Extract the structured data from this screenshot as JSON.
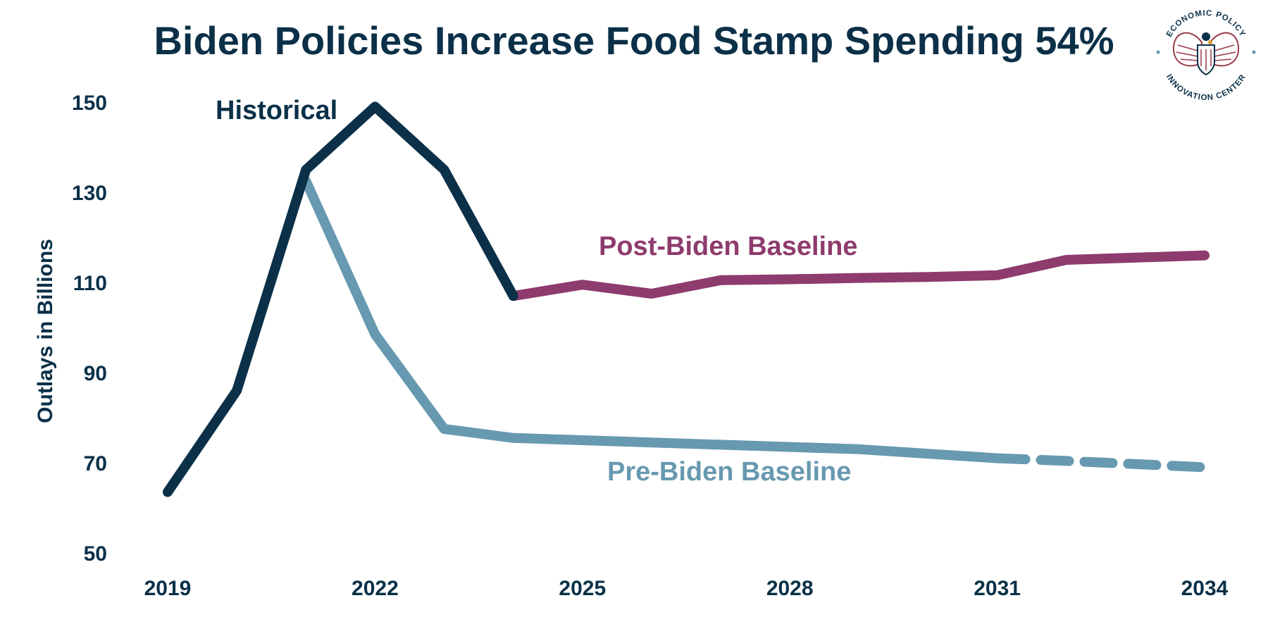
{
  "colors": {
    "navy": "#0b3048",
    "historical": "#0b3048",
    "post_biden": "#8e3b6e",
    "pre_biden": "#6799b0",
    "logo_red": "#9b3a4a"
  },
  "logo": {
    "top_text": "ECONOMIC POLICY",
    "bottom_text": "INNOVATION CENTER",
    "icon": "eagle-seal-icon"
  },
  "chart_data": {
    "type": "line",
    "title": "Biden Policies Increase Food Stamp Spending 54%",
    "xlabel": "",
    "ylabel": "Outlays in Billions",
    "xlim": [
      2019,
      2034
    ],
    "ylim": [
      50,
      150
    ],
    "xticks": [
      "2019",
      "2022",
      "2025",
      "2028",
      "2031",
      "2034"
    ],
    "yticks": [
      "150",
      "130",
      "110",
      "90",
      "70",
      "50"
    ],
    "grid": false,
    "legend": "none (inline series labels)",
    "series": [
      {
        "name": "Historical",
        "color": "#0b3048",
        "x": [
          2019,
          2020,
          2021,
          2022,
          2023,
          2024
        ],
        "y": [
          63.5,
          86,
          135,
          149,
          135,
          107
        ]
      },
      {
        "name": "Post-Biden Baseline",
        "color": "#8e3b6e",
        "x": [
          2024,
          2025,
          2026,
          2027,
          2028,
          2029,
          2030,
          2031,
          2032,
          2033,
          2034
        ],
        "y": [
          107,
          109.5,
          107.5,
          110.5,
          110.7,
          111,
          111.2,
          111.6,
          115,
          115.5,
          116
        ]
      },
      {
        "name": "Pre-Biden Baseline",
        "color": "#6799b0",
        "x": [
          2021,
          2022,
          2023,
          2024,
          2025,
          2026,
          2027,
          2028,
          2029,
          2030,
          2031
        ],
        "y": [
          132.5,
          98.5,
          77.5,
          75.5,
          75,
          74.5,
          74,
          73.5,
          73,
          72,
          71
        ],
        "projection": {
          "style": "dashed",
          "x": [
            2031,
            2032,
            2033,
            2034
          ],
          "y": [
            71,
            70.4,
            69.7,
            69
          ]
        }
      }
    ]
  }
}
